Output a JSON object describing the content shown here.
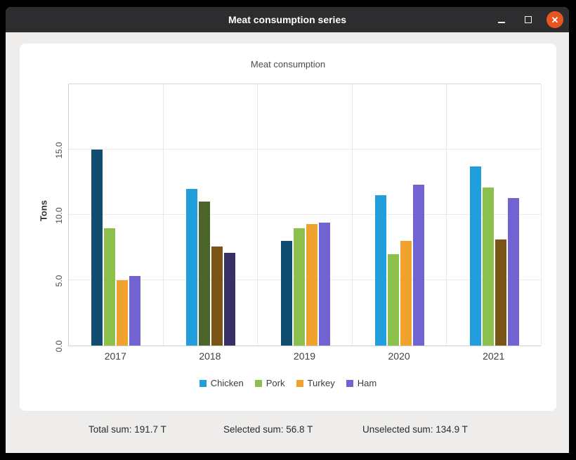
{
  "window": {
    "title": "Meat consumption series",
    "controls": {
      "minimize": "minimize",
      "maximize": "maximize",
      "close_glyph": "✕"
    },
    "titlebar_color": "#2d2d2f",
    "close_button_color": "#e95420"
  },
  "chart_data": {
    "type": "bar",
    "title": "Meat consumption",
    "xlabel": "",
    "ylabel": "Tons",
    "categories": [
      "2017",
      "2018",
      "2019",
      "2020",
      "2021"
    ],
    "y_ticks": [
      "0.0",
      "5.0",
      "10.0",
      "15.0"
    ],
    "ylim": [
      0,
      20.1
    ],
    "grid": true,
    "legend_position": "bottom",
    "series": [
      {
        "name": "Chicken",
        "color": "#219fdd",
        "selected_color": "#114d6e",
        "values": [
          15.0,
          12.0,
          8.0,
          11.5,
          13.7
        ],
        "selected": [
          true,
          false,
          true,
          false,
          false
        ]
      },
      {
        "name": "Pork",
        "color": "#8cc04d",
        "selected_color": "#4a642a",
        "values": [
          9.0,
          11.0,
          9.0,
          7.0,
          12.1
        ],
        "selected": [
          false,
          true,
          false,
          false,
          false
        ]
      },
      {
        "name": "Turkey",
        "color": "#f0a22e",
        "selected_color": "#7a5414",
        "values": [
          5.0,
          7.6,
          9.3,
          8.0,
          8.1
        ],
        "selected": [
          false,
          true,
          false,
          false,
          true
        ]
      },
      {
        "name": "Ham",
        "color": "#7263d3",
        "selected_color": "#363064",
        "values": [
          5.3,
          7.1,
          9.4,
          12.3,
          11.3
        ],
        "selected": [
          false,
          true,
          false,
          false,
          false
        ]
      }
    ]
  },
  "footer": {
    "total": "Total sum: 191.7 T",
    "selected": "Selected sum: 56.8 T",
    "unselected": "Unselected sum: 134.9 T"
  }
}
